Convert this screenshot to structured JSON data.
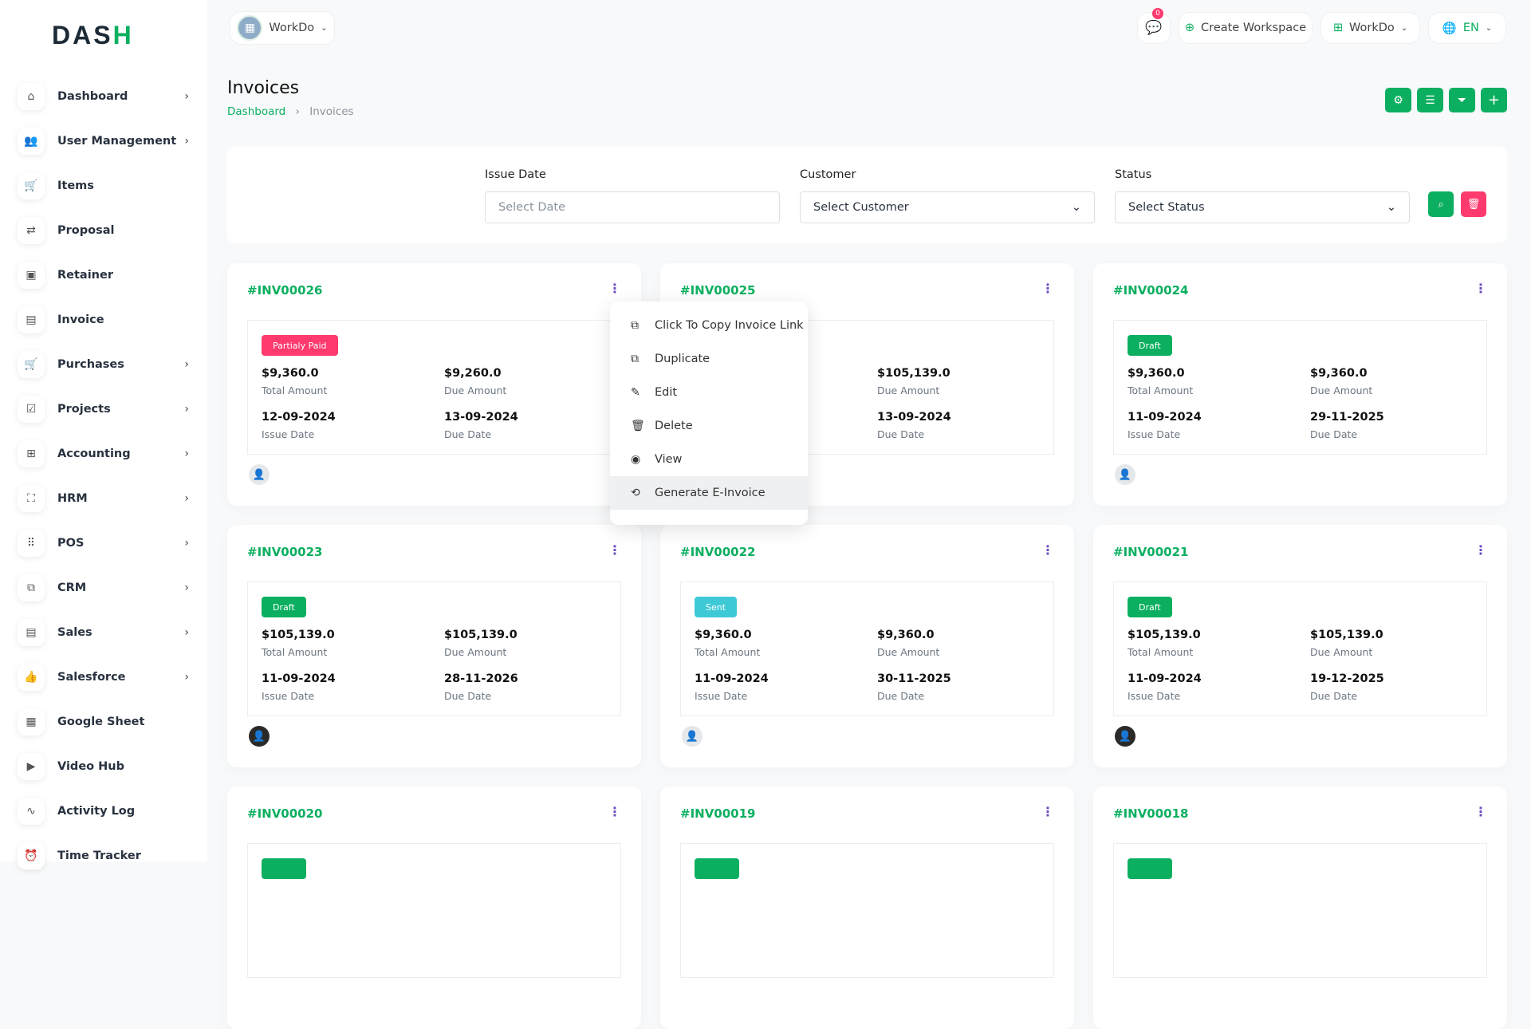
{
  "brand": {
    "logo_text": "DASH"
  },
  "sidebar": {
    "items": [
      {
        "label": "Dashboard",
        "icon": "home-icon",
        "glyph": "⌂",
        "chevron": true
      },
      {
        "label": "User Management",
        "icon": "users-icon",
        "glyph": "👥",
        "chevron": true
      },
      {
        "label": "Items",
        "icon": "cart-icon",
        "glyph": "🛒",
        "chevron": false
      },
      {
        "label": "Proposal",
        "icon": "proposal-icon",
        "glyph": "⇄",
        "chevron": false
      },
      {
        "label": "Retainer",
        "icon": "retainer-icon",
        "glyph": "▣",
        "chevron": false
      },
      {
        "label": "Invoice",
        "icon": "invoice-icon",
        "glyph": "▤",
        "chevron": false
      },
      {
        "label": "Purchases",
        "icon": "cart-icon",
        "glyph": "🛒",
        "chevron": true
      },
      {
        "label": "Projects",
        "icon": "checkbox-icon",
        "glyph": "☑",
        "chevron": true
      },
      {
        "label": "Accounting",
        "icon": "apps-icon",
        "glyph": "⊞",
        "chevron": true
      },
      {
        "label": "HRM",
        "icon": "hrm-icon",
        "glyph": "⛶",
        "chevron": true
      },
      {
        "label": "POS",
        "icon": "grid-dots-icon",
        "glyph": "⠿",
        "chevron": true
      },
      {
        "label": "CRM",
        "icon": "crm-icon",
        "glyph": "⧉",
        "chevron": true
      },
      {
        "label": "Sales",
        "icon": "file-icon",
        "glyph": "▤",
        "chevron": true
      },
      {
        "label": "Salesforce",
        "icon": "thumb-up-icon",
        "glyph": "👍",
        "chevron": true
      },
      {
        "label": "Google Sheet",
        "icon": "table-icon",
        "glyph": "▦",
        "chevron": false
      },
      {
        "label": "Video Hub",
        "icon": "video-icon",
        "glyph": "▶",
        "chevron": false
      },
      {
        "label": "Activity Log",
        "icon": "activity-icon",
        "glyph": "∿",
        "chevron": false
      },
      {
        "label": "Time Tracker",
        "icon": "alarm-clock-icon",
        "glyph": "⏰",
        "chevron": false
      }
    ]
  },
  "header": {
    "workspace": "WorkDo",
    "messages_count": "0",
    "create_workspace": "Create Workspace",
    "workdo_menu": "WorkDo",
    "language": "EN"
  },
  "page": {
    "title": "Invoices",
    "breadcrumb": [
      "Dashboard",
      "Invoices"
    ]
  },
  "filters": {
    "issue_date": {
      "label": "Issue Date",
      "placeholder": "Select Date"
    },
    "customer": {
      "label": "Customer",
      "value": "Select Customer"
    },
    "status": {
      "label": "Status",
      "value": "Select Status"
    }
  },
  "labels": {
    "total": "Total Amount",
    "due": "Due Amount",
    "issue_date": "Issue Date",
    "due_date": "Due Date"
  },
  "colors": {
    "accent": "#0caf60",
    "partial": "#ff3a6e",
    "draft": "#0caf60",
    "sent": "#3ec9d6"
  },
  "invoices": [
    {
      "id": "#INV00026",
      "status": "Partialy Paid",
      "status_color": "#ff3a6e",
      "total": "$9,360.0",
      "due": "$9,260.0",
      "issue": "12-09-2024",
      "due_date": "13-09-2024",
      "avatar": "placeholder"
    },
    {
      "id": "#INV00025",
      "status": "",
      "status_color": "",
      "total": "",
      "due": "$105,139.0",
      "issue": "",
      "due_date": "13-09-2024",
      "avatar": ""
    },
    {
      "id": "#INV00024",
      "status": "Draft",
      "status_color": "#0caf60",
      "total": "$9,360.0",
      "due": "$9,360.0",
      "issue": "11-09-2024",
      "due_date": "29-11-2025",
      "avatar": "placeholder"
    },
    {
      "id": "#INV00023",
      "status": "Draft",
      "status_color": "#0caf60",
      "total": "$105,139.0",
      "due": "$105,139.0",
      "issue": "11-09-2024",
      "due_date": "28-11-2026",
      "avatar": "photo"
    },
    {
      "id": "#INV00022",
      "status": "Sent",
      "status_color": "#3ec9d6",
      "total": "$9,360.0",
      "due": "$9,360.0",
      "issue": "11-09-2024",
      "due_date": "30-11-2025",
      "avatar": "placeholder"
    },
    {
      "id": "#INV00021",
      "status": "Draft",
      "status_color": "#0caf60",
      "total": "$105,139.0",
      "due": "$105,139.0",
      "issue": "11-09-2024",
      "due_date": "19-12-2025",
      "avatar": "photo"
    },
    {
      "id": "#INV00020",
      "status": "",
      "status_color": "#0caf60"
    },
    {
      "id": "#INV00019",
      "status": "",
      "status_color": "#0caf60"
    },
    {
      "id": "#INV00018",
      "status": "",
      "status_color": "#0caf60"
    }
  ],
  "context_menu": {
    "items": [
      {
        "label": "Click To Copy Invoice Link",
        "icon": "copy-icon",
        "glyph": "⧉"
      },
      {
        "label": "Duplicate",
        "icon": "duplicate-icon",
        "glyph": "⧉"
      },
      {
        "label": "Edit",
        "icon": "pencil-icon",
        "glyph": "✎"
      },
      {
        "label": "Delete",
        "icon": "trash-icon",
        "glyph": "🗑"
      },
      {
        "label": "View",
        "icon": "eye-icon",
        "glyph": "◉"
      },
      {
        "label": "Generate E-Invoice",
        "icon": "refresh-icon",
        "glyph": "⟲",
        "active": true
      }
    ]
  }
}
